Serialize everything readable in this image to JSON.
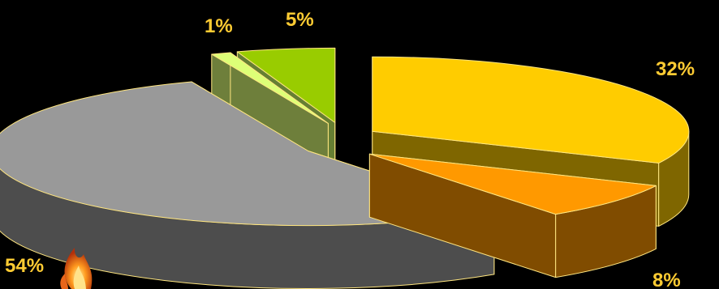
{
  "chart_data": {
    "type": "pie",
    "style": "3d-exploded",
    "legend": "none",
    "title": "",
    "slices": [
      {
        "value": 32,
        "label": "32%",
        "top_color": "#FFCC00",
        "side_color": "#7F6600"
      },
      {
        "value": 8,
        "label": "8%",
        "top_color": "#FF9900",
        "side_color": "#804C00"
      },
      {
        "value": 54,
        "label": "54%",
        "top_color": "#999999",
        "side_color": "#4D4D4D"
      },
      {
        "value": 1,
        "label": "1%",
        "top_color": "#DDFF77",
        "side_color": "#6E7F3B"
      },
      {
        "value": 5,
        "label": "5%",
        "top_color": "#99CC00",
        "side_color": "#667F33"
      }
    ],
    "label_color": "#FFCC33",
    "edge_color": "#FFE680",
    "background": "#000000"
  }
}
